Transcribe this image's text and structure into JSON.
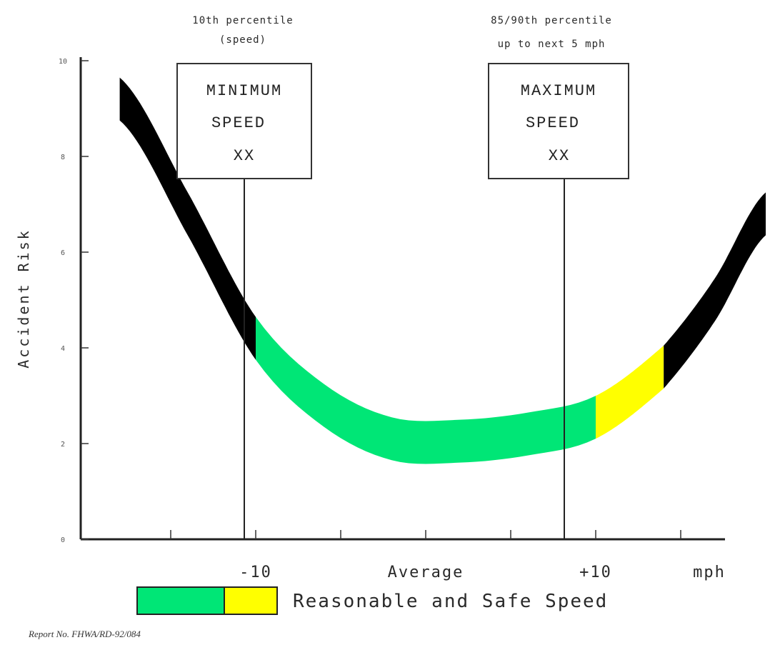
{
  "chart_data": {
    "type": "line",
    "ylabel": "Accident Risk",
    "yticks": [
      "10",
      "8",
      "6",
      "4",
      "2",
      "0"
    ],
    "xlabel_unit": "mph",
    "x_ticks": [
      {
        "label": "-10",
        "x": -10
      },
      {
        "label": "Average",
        "x": 0
      },
      {
        "label": "+10",
        "x": 10
      }
    ],
    "xlim": [
      -20,
      20
    ],
    "ylim": [
      0,
      10
    ],
    "series": [
      {
        "segments": [
          {
            "color": "#000000",
            "from_x": -18,
            "to_x": -10
          },
          {
            "color": "#00e676",
            "from_x": -10,
            "to_x": 10
          },
          {
            "color": "#ffff00",
            "from_x": 10,
            "to_x": 14
          },
          {
            "color": "#000000",
            "from_x": 14,
            "to_x": 20
          }
        ],
        "points": [
          {
            "x": -18,
            "y": 9.2
          },
          {
            "x": -14,
            "y": 6.8
          },
          {
            "x": -10,
            "y": 4.2
          },
          {
            "x": -6,
            "y": 2.8
          },
          {
            "x": -2,
            "y": 2.1
          },
          {
            "x": 2,
            "y": 2.05
          },
          {
            "x": 6,
            "y": 2.2
          },
          {
            "x": 10,
            "y": 2.55
          },
          {
            "x": 14,
            "y": 3.6
          },
          {
            "x": 17,
            "y": 5.0
          },
          {
            "x": 20,
            "y": 6.8
          }
        ]
      }
    ]
  },
  "signs": {
    "min": {
      "line1": "MINIMUM",
      "line2": "SPEED",
      "line3": "XX",
      "annotation1": "10th percentile",
      "annotation2": "(speed)"
    },
    "max": {
      "line1": "MAXIMUM",
      "line2": "SPEED",
      "line3": "XX",
      "annotation1": "85/90th percentile",
      "annotation2": "up to next 5 mph"
    }
  },
  "legend": {
    "label": "Reasonable and Safe Speed",
    "colors": [
      "#00e676",
      "#ffff00"
    ]
  },
  "report": "Report No. FHWA/RD-92/084"
}
